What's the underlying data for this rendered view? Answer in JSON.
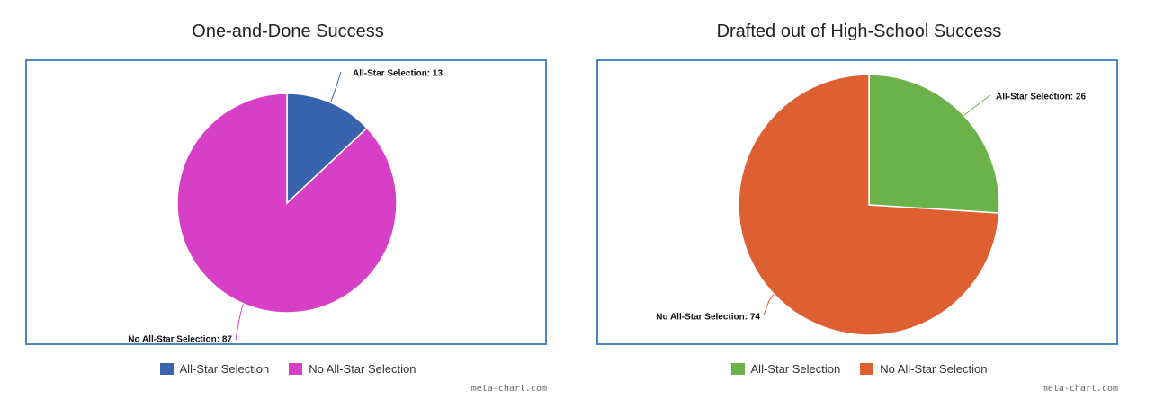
{
  "chart_data": [
    {
      "type": "pie",
      "title": "One-and-Done Success",
      "categories": [
        "All-Star Selection",
        "No All-Star Selection"
      ],
      "values": [
        13,
        87
      ],
      "colors": [
        "#3a63ad",
        "#d63fc6"
      ],
      "slice_labels": [
        "All-Star Selection: 13",
        "No All-Star Selection: 87"
      ],
      "legend_position": "bottom",
      "credit": "meta-chart.com"
    },
    {
      "type": "pie",
      "title": "Drafted out of High-School Success",
      "categories": [
        "All-Star Selection",
        "No All-Star Selection"
      ],
      "values": [
        26,
        74
      ],
      "colors": [
        "#6cb24a",
        "#de5f31"
      ],
      "slice_labels": [
        "All-Star Selection: 26",
        "No All-Star Selection: 74"
      ],
      "legend_position": "bottom",
      "credit": "meta-chart.com"
    }
  ]
}
